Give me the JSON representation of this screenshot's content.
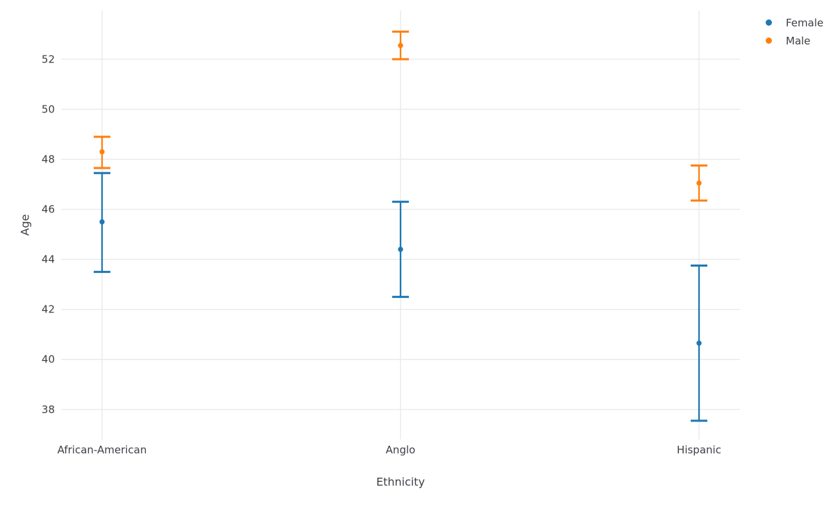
{
  "chart_data": {
    "type": "scatter",
    "subtype": "point-estimates-with-error-bars",
    "title": "",
    "xlabel": "Ethnicity",
    "ylabel": "Age",
    "categories": [
      "African-American",
      "Anglo",
      "Hispanic"
    ],
    "yticks": [
      38,
      40,
      42,
      44,
      46,
      48,
      50,
      52
    ],
    "ylim": [
      36.8,
      53.95
    ],
    "grid": true,
    "legend_position": "top-right",
    "series": [
      {
        "name": "Female",
        "color": "#1f77b4",
        "points": [
          {
            "category": "African-American",
            "y": 45.5,
            "ci_low": 43.5,
            "ci_high": 47.45
          },
          {
            "category": "Anglo",
            "y": 44.4,
            "ci_low": 42.5,
            "ci_high": 46.3
          },
          {
            "category": "Hispanic",
            "y": 40.65,
            "ci_low": 37.55,
            "ci_high": 43.75
          }
        ]
      },
      {
        "name": "Male",
        "color": "#ff7f0e",
        "points": [
          {
            "category": "African-American",
            "y": 48.3,
            "ci_low": 47.65,
            "ci_high": 48.9
          },
          {
            "category": "Anglo",
            "y": 52.55,
            "ci_low": 52.0,
            "ci_high": 53.1
          },
          {
            "category": "Hispanic",
            "y": 47.05,
            "ci_low": 46.35,
            "ci_high": 47.75
          }
        ]
      }
    ],
    "colors": {
      "background": "#ffffff",
      "grid": "#e8e8e8",
      "text": "#3d4046"
    }
  }
}
